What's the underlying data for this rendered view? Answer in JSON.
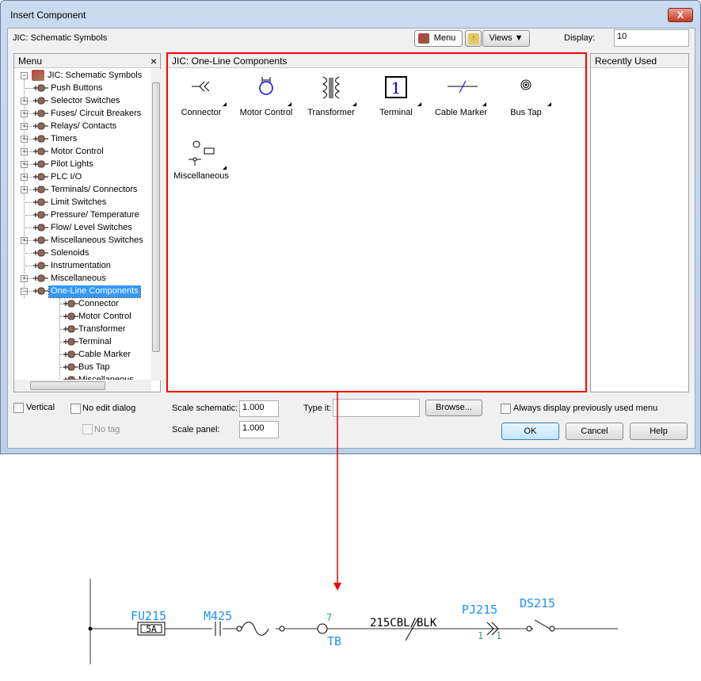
{
  "window": {
    "title": "Insert Component",
    "close": "X"
  },
  "toolbar": {
    "library": "JIC: Schematic Symbols",
    "menu_label": "Menu",
    "views_label": "Views",
    "display_label": "Display:",
    "display_value": "10"
  },
  "menu_panel": {
    "title": "Menu",
    "close": "×",
    "root": "JIC: Schematic Symbols",
    "items": [
      {
        "label": "Push Buttons",
        "exp": false
      },
      {
        "label": "Selector Switches",
        "exp": true
      },
      {
        "label": "Fuses/ Circuit Breakers",
        "exp": true
      },
      {
        "label": "Relays/ Contacts",
        "exp": true
      },
      {
        "label": "Timers",
        "exp": true
      },
      {
        "label": "Motor Control",
        "exp": true
      },
      {
        "label": "Pilot Lights",
        "exp": true
      },
      {
        "label": "PLC I/O",
        "exp": true
      },
      {
        "label": "Terminals/ Connectors",
        "exp": true
      },
      {
        "label": "Limit Switches",
        "exp": false
      },
      {
        "label": "Pressure/ Temperature",
        "exp": false
      },
      {
        "label": "Flow/ Level Switches",
        "exp": false
      },
      {
        "label": "Miscellaneous Switches",
        "exp": true
      },
      {
        "label": "Solenoids",
        "exp": false
      },
      {
        "label": "Instrumentation",
        "exp": false
      },
      {
        "label": "Miscellaneous",
        "exp": true
      },
      {
        "label": "One-Line Components",
        "exp": "open",
        "selected": true
      }
    ],
    "children": [
      "Connector",
      "Motor Control",
      "Transformer",
      "Terminal",
      "Cable Marker",
      "Bus Tap",
      "Miscellaneous"
    ]
  },
  "center_panel": {
    "title": "JIC: One-Line Components",
    "components": [
      {
        "label": "Connector",
        "icon": "connector-icon"
      },
      {
        "label": "Motor Control",
        "icon": "motor-control-icon"
      },
      {
        "label": "Transformer",
        "icon": "transformer-icon"
      },
      {
        "label": "Terminal",
        "icon": "terminal-icon"
      },
      {
        "label": "Cable Marker",
        "icon": "cable-marker-icon"
      },
      {
        "label": "Bus Tap",
        "icon": "bus-tap-icon"
      },
      {
        "label": "Miscellaneous",
        "icon": "miscellaneous-icon"
      }
    ],
    "highlight_color": "#ff0000"
  },
  "recent_panel": {
    "title": "Recently Used"
  },
  "bottom": {
    "vertical": "Vertical",
    "no_edit": "No edit dialog",
    "no_tag": "No tag",
    "scale_schematic_label": "Scale schematic:",
    "scale_schematic": "1.000",
    "scale_panel_label": "Scale panel:",
    "scale_panel": "1.000",
    "type_it_label": "Type it:",
    "type_it": "",
    "browse": "Browse...",
    "always_display": "Always display previously used menu",
    "ok": "OK",
    "cancel": "Cancel",
    "help": "Help"
  },
  "schematic": {
    "fuse_tag": "FU215",
    "fuse_rating": "5A",
    "motor_tag": "M425",
    "terminal_num": "7",
    "terminal_tag": "TB",
    "cable": "215CBL/BLK",
    "connector_tag": "PJ215",
    "pin_left": "1",
    "pin_right": "1",
    "switch_tag": "DS215",
    "tag_color": "#1e90ff",
    "pin_color": "#3a9a7a"
  }
}
